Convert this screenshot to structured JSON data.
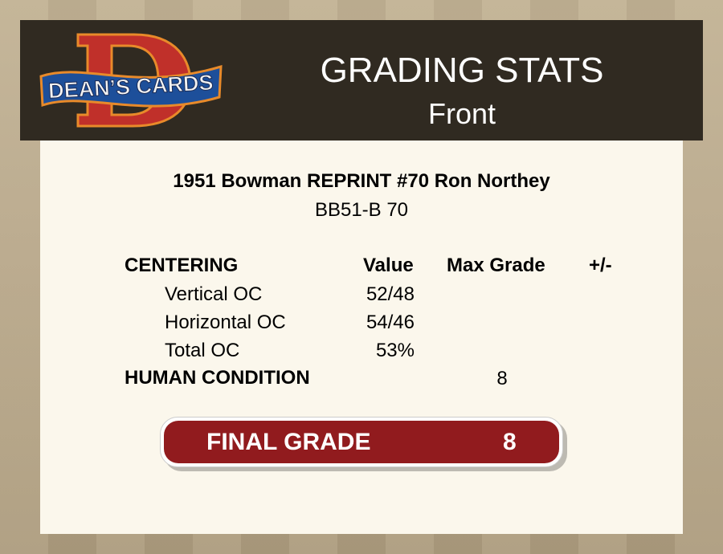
{
  "header": {
    "logo_text": "DEAN'S CARDS",
    "title": "GRADING STATS",
    "subtitle": "Front"
  },
  "card": {
    "title": "1951 Bowman REPRINT #70 Ron Northey",
    "code": "BB51-B 70"
  },
  "table": {
    "headers": {
      "section": "CENTERING",
      "value": "Value",
      "max_grade": "Max Grade",
      "plus_minus": "+/-"
    },
    "rows": [
      {
        "label": "Vertical OC",
        "value": "52/48"
      },
      {
        "label": "Horizontal OC",
        "value": "54/46"
      },
      {
        "label": "Total OC",
        "value": "53%"
      }
    ],
    "human_condition": {
      "label": "HUMAN CONDITION",
      "max_grade": "8"
    }
  },
  "final_grade": {
    "label": "FINAL GRADE",
    "value": "8",
    "color": "#911b1e"
  }
}
